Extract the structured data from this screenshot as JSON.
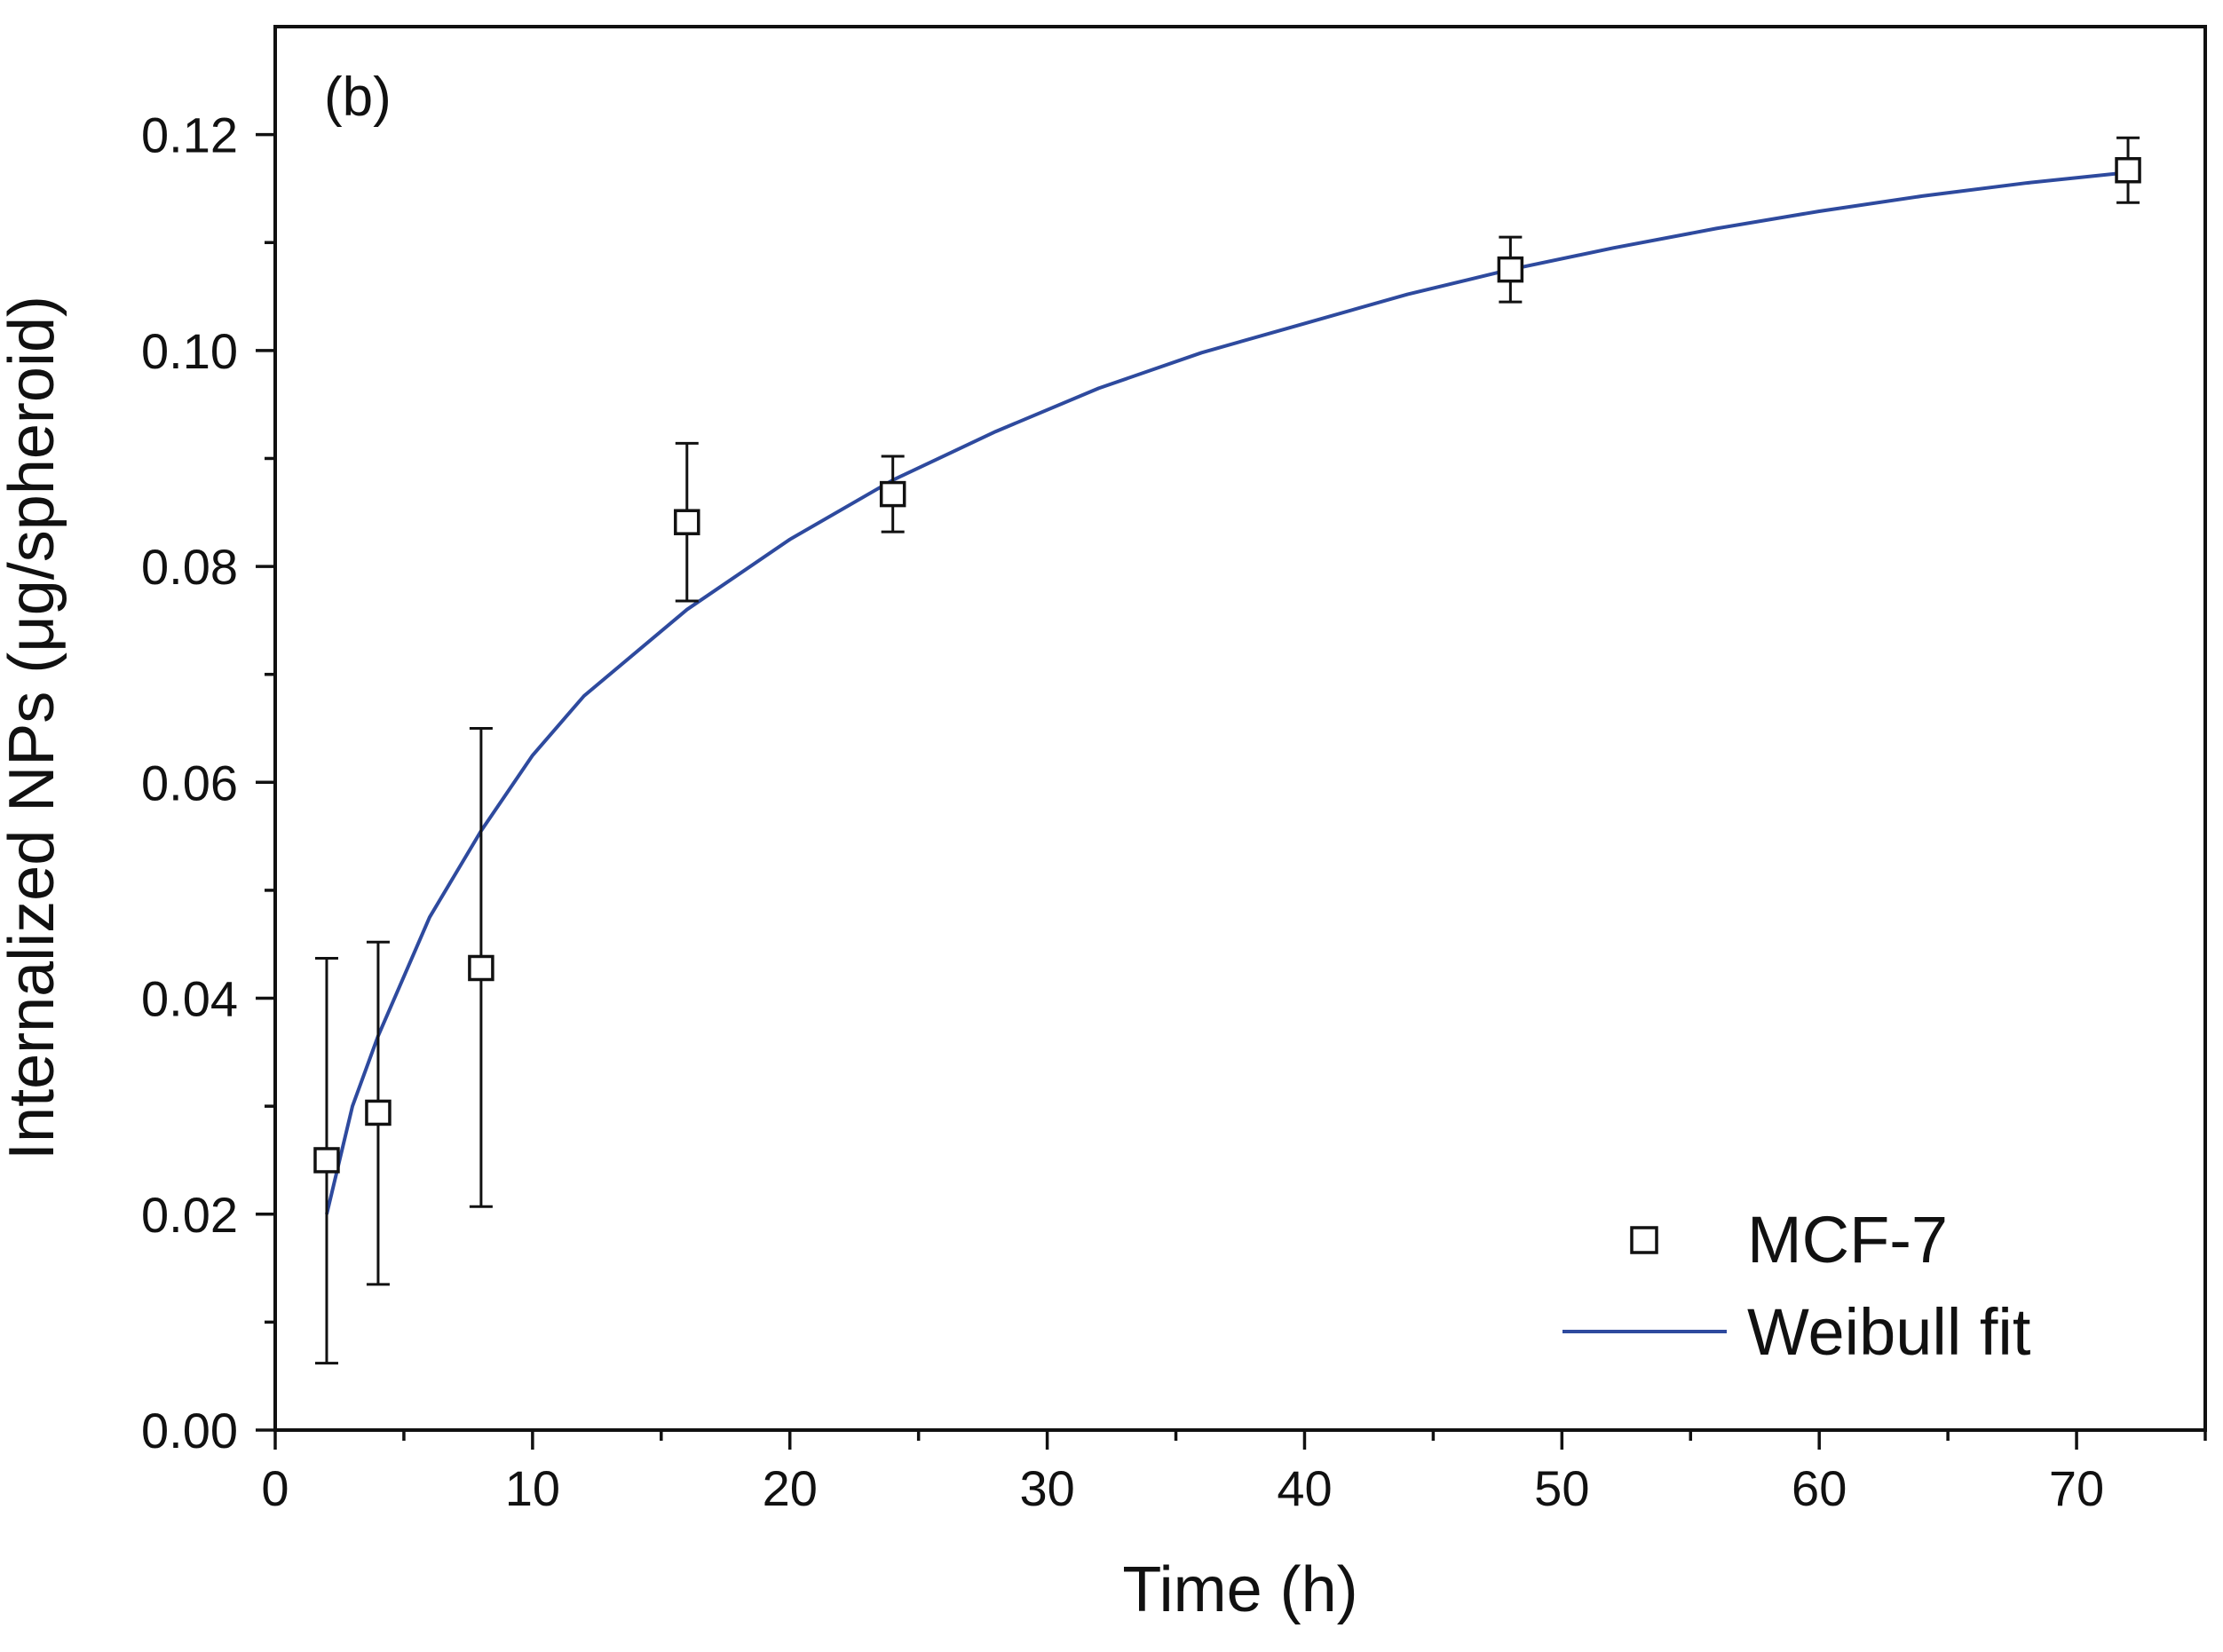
{
  "chart_data": {
    "type": "scatter",
    "panel_label": "(b)",
    "xlabel": "Time (h)",
    "ylabel": "Internalized NPs (μg/spheroid)",
    "xlim": [
      0,
      75
    ],
    "ylim": [
      0,
      0.13
    ],
    "x_ticks": [
      0,
      10,
      20,
      30,
      40,
      50,
      60,
      70
    ],
    "x_tick_labels": [
      "0",
      "10",
      "20",
      "30",
      "40",
      "50",
      "60",
      "70"
    ],
    "x_minor_step": 5,
    "y_ticks": [
      0.0,
      0.02,
      0.04,
      0.06,
      0.08,
      0.1,
      0.12
    ],
    "y_tick_labels": [
      "0.00",
      "0.02",
      "0.04",
      "0.06",
      "0.08",
      "0.10",
      "0.12"
    ],
    "y_minor_step": 0.01,
    "legend_position": "bottom-right",
    "series": [
      {
        "name": "MCF-7",
        "kind": "scatter",
        "marker": "open-square",
        "color": "#111111",
        "points": [
          {
            "x": 2,
            "y": 0.025,
            "err_low": 0.0062,
            "err_high": 0.0437
          },
          {
            "x": 4,
            "y": 0.0294,
            "err_low": 0.0135,
            "err_high": 0.0452
          },
          {
            "x": 8,
            "y": 0.0428,
            "err_low": 0.0207,
            "err_high": 0.065
          },
          {
            "x": 16,
            "y": 0.0841,
            "err_low": 0.0768,
            "err_high": 0.0914
          },
          {
            "x": 24,
            "y": 0.0867,
            "err_low": 0.0832,
            "err_high": 0.0902
          },
          {
            "x": 48,
            "y": 0.1075,
            "err_low": 0.1045,
            "err_high": 0.1105
          },
          {
            "x": 72,
            "y": 0.1167,
            "err_low": 0.1137,
            "err_high": 0.1197
          }
        ]
      },
      {
        "name": "Weibull fit",
        "kind": "line",
        "color": "#2e4a9e",
        "x": [
          2,
          3,
          4,
          6,
          8,
          10,
          12,
          16,
          20,
          24,
          28,
          32,
          36,
          40,
          44,
          48,
          52,
          56,
          60,
          64,
          68,
          72
        ],
        "y": [
          0.02,
          0.03,
          0.0365,
          0.0475,
          0.0555,
          0.0625,
          0.068,
          0.076,
          0.0825,
          0.088,
          0.0925,
          0.0965,
          0.0998,
          0.1025,
          0.1052,
          0.1075,
          0.1095,
          0.1113,
          0.1129,
          0.1143,
          0.1155,
          0.1165
        ]
      }
    ]
  }
}
